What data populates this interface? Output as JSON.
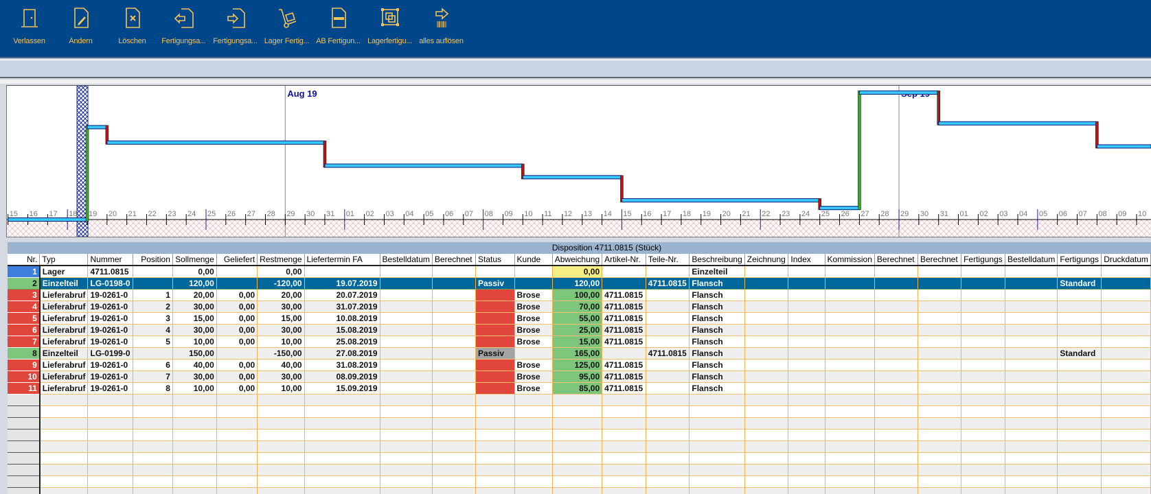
{
  "toolbar": {
    "buttons": [
      {
        "label": "Verlassen",
        "icon": "door-exit-icon"
      },
      {
        "label": "Ändern",
        "icon": "document-edit-icon"
      },
      {
        "label": "Löschen",
        "icon": "document-delete-icon"
      },
      {
        "label": "Fertigungsa...",
        "icon": "document-arrow-left-icon"
      },
      {
        "label": "Fertigungsa...",
        "icon": "document-arrow-right-icon"
      },
      {
        "label": "Lager Fertig...",
        "icon": "hand-truck-icon"
      },
      {
        "label": "AB Fertigun...",
        "icon": "document-order-icon"
      },
      {
        "label": "Lagerfertigu...",
        "icon": "frame-squares-icon"
      },
      {
        "label": "alles auflösen",
        "icon": "arrow-barcode-icon"
      }
    ],
    "icon_color": "#f2c35a"
  },
  "stock_chart": {
    "type": "line",
    "step": true,
    "month_labels": [
      {
        "label": "Aug 19",
        "date": "2019-07-29"
      },
      {
        "label": "Sep 19",
        "date": "2019-08-29"
      }
    ],
    "x_start": "2019-07-15",
    "x_end": "2019-09-12",
    "today": "2019-07-19",
    "ylim": [
      0,
      165
    ],
    "points": [
      {
        "date": "2019-07-15",
        "value": 0
      },
      {
        "date": "2019-07-19",
        "value": 120
      },
      {
        "date": "2019-07-20",
        "value": 100
      },
      {
        "date": "2019-07-31",
        "value": 70
      },
      {
        "date": "2019-08-10",
        "value": 55
      },
      {
        "date": "2019-08-15",
        "value": 25
      },
      {
        "date": "2019-08-25",
        "value": 15
      },
      {
        "date": "2019-08-27",
        "value": 165
      },
      {
        "date": "2019-08-31",
        "value": 125
      },
      {
        "date": "2019-09-08",
        "value": 95
      }
    ],
    "colors": {
      "line": "#38c8f8",
      "up": "#3aa82a",
      "down": "#b01818",
      "week": "#1a1aa8"
    }
  },
  "grid": {
    "title": "Disposition  4711.0815 (Stück)",
    "columns": [
      "Nr.",
      "Typ",
      "Nummer",
      "Position",
      "Sollmenge",
      "Geliefert",
      "Restmenge",
      "Liefertermin FA",
      "Bestelldatum",
      "Berechnet",
      "Status",
      "Kunde",
      "Abweichung",
      "Artikel-Nr.",
      "Teile-Nr.",
      "Beschreibung",
      "Zeichnung",
      "Index",
      "Kommission",
      "Berechnet",
      "Berechnet",
      "Fertigungs",
      "Bestelldatum",
      "Fertigungs",
      "Druckdatum"
    ],
    "rows": [
      {
        "nr": "1",
        "mark": "blue",
        "status": "",
        "abw": "y",
        "cells": [
          "Lager",
          "4711.0815",
          "",
          "0,00",
          "",
          "0,00",
          "",
          "",
          "",
          "",
          "",
          "0,00",
          "",
          "",
          "Einzelteil",
          "",
          "",
          "",
          "",
          "",
          "",
          "",
          "",
          ""
        ]
      },
      {
        "nr": "2",
        "mark": "green",
        "status": "",
        "abw": "",
        "selected": true,
        "cells": [
          "Einzelteil",
          "LG-0198-0",
          "",
          "120,00",
          "",
          "-120,00",
          "19.07.2019",
          "",
          "",
          "Passiv",
          "",
          "120,00",
          "",
          "4711.0815",
          "Flansch",
          "",
          "",
          "",
          "",
          "",
          "",
          "",
          "Standard",
          ""
        ]
      },
      {
        "nr": "3",
        "mark": "red",
        "status": "red",
        "abw": "g",
        "cells": [
          "Lieferabruf",
          "19-0261-0",
          "1",
          "20,00",
          "0,00",
          "20,00",
          "20.07.2019",
          "",
          "",
          "",
          "Brose",
          "100,00",
          "4711.0815",
          "",
          "Flansch",
          "",
          "",
          "",
          "",
          "",
          "",
          "",
          "",
          ""
        ]
      },
      {
        "nr": "4",
        "mark": "red",
        "status": "red",
        "abw": "g",
        "cells": [
          "Lieferabruf",
          "19-0261-0",
          "2",
          "30,00",
          "0,00",
          "30,00",
          "31.07.2019",
          "",
          "",
          "",
          "Brose",
          "70,00",
          "4711.0815",
          "",
          "Flansch",
          "",
          "",
          "",
          "",
          "",
          "",
          "",
          "",
          ""
        ]
      },
      {
        "nr": "5",
        "mark": "red",
        "status": "red",
        "abw": "g",
        "cells": [
          "Lieferabruf",
          "19-0261-0",
          "3",
          "15,00",
          "0,00",
          "15,00",
          "10.08.2019",
          "",
          "",
          "",
          "Brose",
          "55,00",
          "4711.0815",
          "",
          "Flansch",
          "",
          "",
          "",
          "",
          "",
          "",
          "",
          "",
          ""
        ]
      },
      {
        "nr": "6",
        "mark": "red",
        "status": "red",
        "abw": "g",
        "cells": [
          "Lieferabruf",
          "19-0261-0",
          "4",
          "30,00",
          "0,00",
          "30,00",
          "15.08.2019",
          "",
          "",
          "",
          "Brose",
          "25,00",
          "4711.0815",
          "",
          "Flansch",
          "",
          "",
          "",
          "",
          "",
          "",
          "",
          "",
          ""
        ]
      },
      {
        "nr": "7",
        "mark": "red",
        "status": "red",
        "abw": "g",
        "cells": [
          "Lieferabruf",
          "19-0261-0",
          "5",
          "10,00",
          "0,00",
          "10,00",
          "25.08.2019",
          "",
          "",
          "",
          "Brose",
          "15,00",
          "4711.0815",
          "",
          "Flansch",
          "",
          "",
          "",
          "",
          "",
          "",
          "",
          "",
          ""
        ]
      },
      {
        "nr": "8",
        "mark": "green",
        "status": "gray",
        "abw": "g",
        "cells": [
          "Einzelteil",
          "LG-0199-0",
          "",
          "150,00",
          "",
          "-150,00",
          "27.08.2019",
          "",
          "",
          "Passiv",
          "",
          "165,00",
          "",
          "4711.0815",
          "Flansch",
          "",
          "",
          "",
          "",
          "",
          "",
          "",
          "Standard",
          ""
        ]
      },
      {
        "nr": "9",
        "mark": "red",
        "status": "red",
        "abw": "g",
        "cells": [
          "Lieferabruf",
          "19-0261-0",
          "6",
          "40,00",
          "0,00",
          "40,00",
          "31.08.2019",
          "",
          "",
          "",
          "Brose",
          "125,00",
          "4711.0815",
          "",
          "Flansch",
          "",
          "",
          "",
          "",
          "",
          "",
          "",
          "",
          ""
        ]
      },
      {
        "nr": "10",
        "mark": "red",
        "status": "red",
        "abw": "g",
        "cells": [
          "Lieferabruf",
          "19-0261-0",
          "7",
          "30,00",
          "0,00",
          "30,00",
          "08.09.2019",
          "",
          "",
          "",
          "Brose",
          "95,00",
          "4711.0815",
          "",
          "Flansch",
          "",
          "",
          "",
          "",
          "",
          "",
          "",
          "",
          ""
        ]
      },
      {
        "nr": "11",
        "mark": "red",
        "status": "red",
        "abw": "g",
        "cells": [
          "Lieferabruf",
          "19-0261-0",
          "8",
          "10,00",
          "0,00",
          "10,00",
          "15.09.2019",
          "",
          "",
          "",
          "Brose",
          "85,00",
          "4711.0815",
          "",
          "Flansch",
          "",
          "",
          "",
          "",
          "",
          "",
          "",
          "",
          ""
        ]
      }
    ]
  }
}
